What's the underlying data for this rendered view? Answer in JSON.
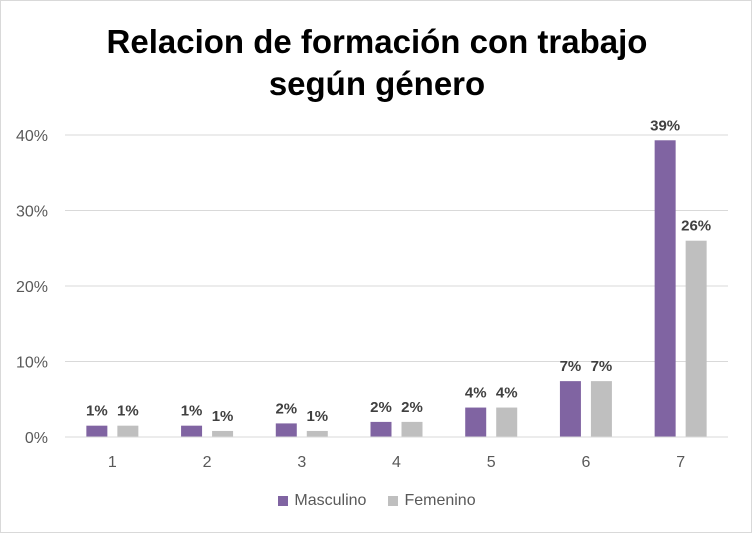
{
  "chart_data": {
    "type": "bar",
    "title": "Relacion de formación con trabajo",
    "subtitle": "según género",
    "xlabel": "",
    "ylabel": "",
    "categories": [
      "1",
      "2",
      "3",
      "4",
      "5",
      "6",
      "7"
    ],
    "series": [
      {
        "name": "Masculino",
        "color": "#8064a2",
        "values": [
          1.5,
          1.5,
          1.8,
          2.0,
          3.9,
          7.4,
          39.3
        ],
        "labels": [
          "1%",
          "1%",
          "2%",
          "2%",
          "4%",
          "7%",
          "39%"
        ]
      },
      {
        "name": "Femenino",
        "color": "#bfbfbf",
        "values": [
          1.5,
          0.8,
          0.8,
          2.0,
          3.9,
          7.4,
          26.0
        ],
        "labels": [
          "1%",
          "1%",
          "1%",
          "2%",
          "4%",
          "7%",
          "26%"
        ]
      }
    ],
    "ylim": [
      0,
      40
    ],
    "yticks": [
      0,
      10,
      20,
      30,
      40
    ],
    "ytick_labels": [
      "0%",
      "10%",
      "20%",
      "30%",
      "40%"
    ],
    "grid": true,
    "legend_position": "bottom"
  }
}
